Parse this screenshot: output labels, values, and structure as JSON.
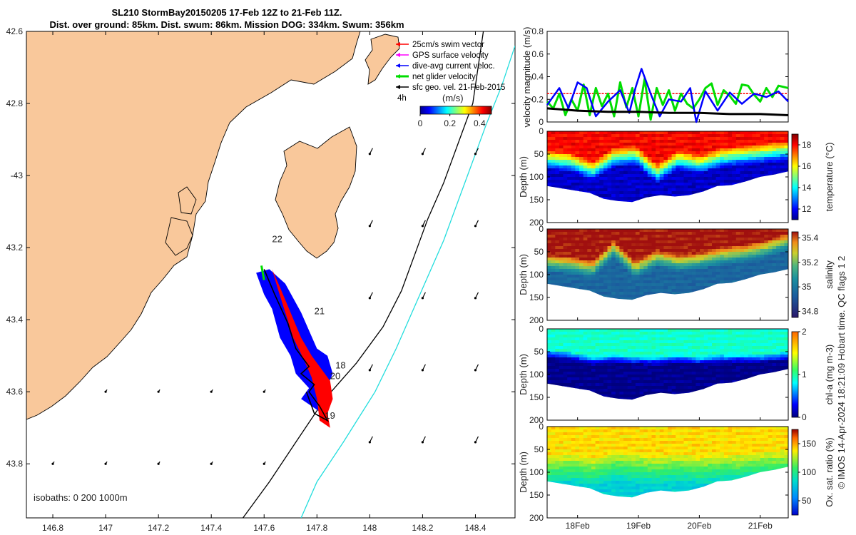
{
  "chart_data": {
    "type": "figure",
    "title_line1": "SL210 StormBay20150205 17-Feb 12Z to 21-Feb 11Z.",
    "title_line2": "Dist. over ground: 85km. Dist. swum: 86km. Mission DOG: 334km. Swum: 356km",
    "credit": "© IMOS 14-Apr-2024 18:21:09 Hobart time. QC flags 1  2",
    "map": {
      "lat_ticks": [
        "42.6",
        "42.8",
        "-43",
        "43.2",
        "43.4",
        "43.6",
        "43.8"
      ],
      "lat_values": [
        -42.6,
        -42.8,
        -43.0,
        -43.2,
        -43.4,
        -43.6,
        -43.8
      ],
      "lon_ticks": [
        "146.8",
        "147",
        "147.2",
        "147.4",
        "147.6",
        "147.8",
        "148",
        "148.2",
        "148.4"
      ],
      "lon_values": [
        146.8,
        147.0,
        147.2,
        147.4,
        147.6,
        147.8,
        148.0,
        148.2,
        148.4
      ],
      "lon_range": [
        146.7,
        148.55
      ],
      "lat_range": [
        -42.6,
        -43.95
      ],
      "legend": [
        {
          "label": "25cm/s swim vector",
          "color": "#ff0000"
        },
        {
          "label": "GPS surface velocity",
          "color": "#ff00ff"
        },
        {
          "label": "dive-avg current veloc.",
          "color": "#0000ff"
        },
        {
          "label": "net glider velocity",
          "color": "#00dd00"
        },
        {
          "label": "sfc geo. vel. 21-Feb-2015",
          "color": "#000000"
        }
      ],
      "scale_label": "4h",
      "colorbar_unit": "(m/s)",
      "colorbar_ticks": [
        "0",
        "0.2",
        "0.4"
      ],
      "colorbar_values": [
        0,
        0.2,
        0.4
      ],
      "colorbar_range": [
        0,
        0.48
      ],
      "day_labels": [
        {
          "text": "22",
          "lon": 147.63,
          "lat": -43.185
        },
        {
          "text": "21",
          "lon": 147.79,
          "lat": -43.385
        },
        {
          "text": "18",
          "lon": 147.87,
          "lat": -43.535
        },
        {
          "text": "20",
          "lon": 147.85,
          "lat": -43.565
        },
        {
          "text": "19",
          "lon": 147.83,
          "lat": -43.675
        }
      ],
      "isobaths_label": "isobaths: 0   200  1000m"
    },
    "velocity_panel": {
      "ylabel": "velocity magnitude (m/s)",
      "ylim": [
        0,
        0.8
      ],
      "yticks": [
        "0",
        "0.2",
        "0.4",
        "0.6",
        "0.8"
      ],
      "ytick_values": [
        0,
        0.2,
        0.4,
        0.6,
        0.8
      ],
      "time_range": [
        17.5,
        21.46
      ],
      "series": [
        {
          "name": "swim speed",
          "color": "#ff0000",
          "x": [
            17.5,
            18.0,
            18.5,
            19.0,
            19.5,
            20.0,
            20.5,
            21.0,
            21.46
          ],
          "values": [
            0.25,
            0.25,
            0.25,
            0.25,
            0.25,
            0.25,
            0.25,
            0.25,
            0.25
          ]
        },
        {
          "name": "net glider velocity",
          "color": "#00dd00",
          "x": [
            17.5,
            17.6,
            17.7,
            17.8,
            17.9,
            18.0,
            18.1,
            18.2,
            18.3,
            18.4,
            18.5,
            18.6,
            18.7,
            18.8,
            18.9,
            19.0,
            19.1,
            19.2,
            19.3,
            19.4,
            19.5,
            19.6,
            19.7,
            19.8,
            19.9,
            20.0,
            20.1,
            20.2,
            20.3,
            20.4,
            20.5,
            20.6,
            20.7,
            20.8,
            20.9,
            21.0,
            21.1,
            21.2,
            21.3,
            21.46
          ],
          "values": [
            0.18,
            0.12,
            0.25,
            0.06,
            0.2,
            0.1,
            0.33,
            0.06,
            0.3,
            0.14,
            0.25,
            0.05,
            0.35,
            0.13,
            0.3,
            0.05,
            0.38,
            0.02,
            0.3,
            0.15,
            0.28,
            0.1,
            0.25,
            0.16,
            0.12,
            0.2,
            0.3,
            0.34,
            0.15,
            0.28,
            0.23,
            0.16,
            0.33,
            0.32,
            0.24,
            0.18,
            0.3,
            0.22,
            0.32,
            0.3
          ]
        },
        {
          "name": "dive-avg current",
          "color": "#0000ff",
          "x": [
            17.5,
            17.7,
            17.85,
            18.0,
            18.15,
            18.3,
            18.5,
            18.7,
            18.85,
            18.95,
            19.05,
            19.2,
            19.35,
            19.5,
            19.7,
            19.85,
            19.95,
            20.1,
            20.3,
            20.5,
            20.7,
            20.9,
            21.1,
            21.3,
            21.46
          ],
          "values": [
            0.15,
            0.3,
            0.12,
            0.35,
            0.3,
            0.05,
            0.18,
            0.28,
            0.08,
            0.3,
            0.47,
            0.25,
            0.05,
            0.2,
            0.18,
            0.3,
            0.0,
            0.27,
            0.1,
            0.26,
            0.16,
            0.25,
            0.22,
            0.27,
            0.18
          ]
        },
        {
          "name": "sfc geo. vel.",
          "color": "#000000",
          "x": [
            17.5,
            18.0,
            18.5,
            19.0,
            19.5,
            20.0,
            20.5,
            21.0,
            21.46
          ],
          "values": [
            0.12,
            0.1,
            0.09,
            0.09,
            0.08,
            0.08,
            0.07,
            0.07,
            0.06
          ]
        }
      ]
    },
    "sections": [
      {
        "name": "temperature",
        "cb_label": "temperature (°C)",
        "cb_ticks": [
          "12",
          "14",
          "16",
          "18"
        ],
        "cb_values": [
          12,
          14,
          16,
          18
        ],
        "cb_range": [
          11,
          19
        ],
        "surface_value": 18,
        "deep_value": 11.5,
        "mixed_layer_depth_m": [
          40,
          45,
          65,
          35,
          30,
          70,
          40,
          50,
          35,
          30,
          25,
          20
        ],
        "gradient_thickness_m": 45
      },
      {
        "name": "salinity",
        "cb_label": "salinity",
        "cb_ticks": [
          "34.8",
          "35",
          "35.2",
          "35.4"
        ],
        "cb_values": [
          34.8,
          35.0,
          35.2,
          35.4
        ],
        "cb_range": [
          34.75,
          35.45
        ],
        "surface_value": 35.45,
        "deep_value": 34.95,
        "mixed_layer_depth_m": [
          55,
          60,
          70,
          25,
          70,
          45,
          55,
          50,
          40,
          35,
          25,
          10
        ],
        "gradient_thickness_m": 40
      },
      {
        "name": "chl-a",
        "cb_label": "chl-a (mg m-3)",
        "cb_ticks": [
          "0",
          "1",
          "2"
        ],
        "cb_values": [
          0,
          1,
          2
        ],
        "cb_range": [
          0,
          2
        ],
        "surface_value": 0.9,
        "deep_value": 0.02,
        "mixed_layer_depth_m": [
          45,
          50,
          60,
          55,
          60,
          60,
          55,
          60,
          55,
          55,
          55,
          50
        ],
        "gradient_thickness_m": 20
      },
      {
        "name": "oxygen",
        "cb_label": "Ox. sat. ratio (%)",
        "cb_ticks": [
          "50",
          "100",
          "150"
        ],
        "cb_values": [
          50,
          100,
          150
        ],
        "cb_range": [
          25,
          175
        ],
        "surface_value": 140,
        "deep_value": 80,
        "mixed_layer_depth_m": [
          60,
          55,
          65,
          50,
          55,
          60,
          55,
          60,
          55,
          55,
          50,
          50
        ],
        "gradient_thickness_m": 70
      }
    ],
    "section_depth": {
      "ylabel": "Depth (m)",
      "ylim": [
        0,
        200
      ],
      "yticks": [
        "0",
        "50",
        "100",
        "150",
        "200"
      ],
      "ytick_values": [
        0,
        50,
        100,
        150,
        200
      ]
    },
    "section_bottom_depth_m": [
      120,
      125,
      130,
      135,
      148,
      153,
      155,
      145,
      140,
      143,
      140,
      132,
      120,
      118,
      110,
      100,
      95,
      88
    ],
    "time_axis": {
      "ticks": [
        "18Feb",
        "19Feb",
        "20Feb",
        "21Feb"
      ],
      "values": [
        18,
        19,
        20,
        21
      ]
    }
  }
}
